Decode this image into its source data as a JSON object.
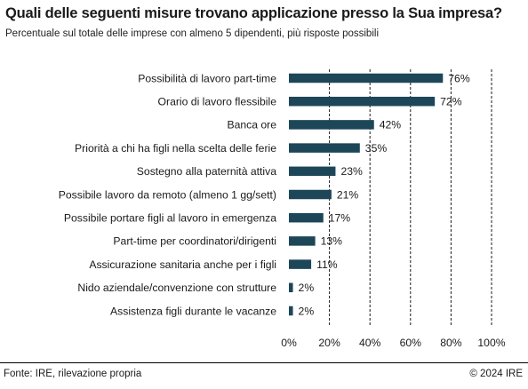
{
  "chart_data": {
    "type": "bar",
    "orientation": "horizontal",
    "title": "Quali delle seguenti misure trovano applicazione presso la Sua impresa?",
    "subtitle": "Percentuale sul totale delle imprese con almeno 5 dipendenti, più risposte possibili",
    "categories": [
      "Possibilità di lavoro part-time",
      "Orario di lavoro flessibile",
      "Banca ore",
      "Priorità a chi ha figli nella scelta delle ferie",
      "Sostegno alla paternità attiva",
      "Possibile lavoro da remoto (almeno 1 gg/sett)",
      "Possibile portare figli al lavoro in emergenza",
      "Part-time per coordinatori/dirigenti",
      "Assicurazione sanitaria anche per i figli",
      "Nido aziendale/convenzione con strutture",
      "Assistenza figli durante le vacanze"
    ],
    "values": [
      76,
      72,
      42,
      35,
      23,
      21,
      17,
      13,
      11,
      2,
      2
    ],
    "value_labels": [
      "76%",
      "72%",
      "42%",
      "35%",
      "23%",
      "21%",
      "17%",
      "13%",
      "11%",
      "2%",
      "2%"
    ],
    "xlim": [
      0,
      100
    ],
    "x_ticks": [
      0,
      20,
      40,
      60,
      80,
      100
    ],
    "x_tick_labels": [
      "0%",
      "20%",
      "40%",
      "60%",
      "80%",
      "100%"
    ],
    "grid": "vertical dashed at ticks",
    "bar_color": "#1d4658"
  },
  "footer": {
    "source": "Fonte: IRE, rilevazione propria",
    "copyright": "© 2024 IRE"
  }
}
